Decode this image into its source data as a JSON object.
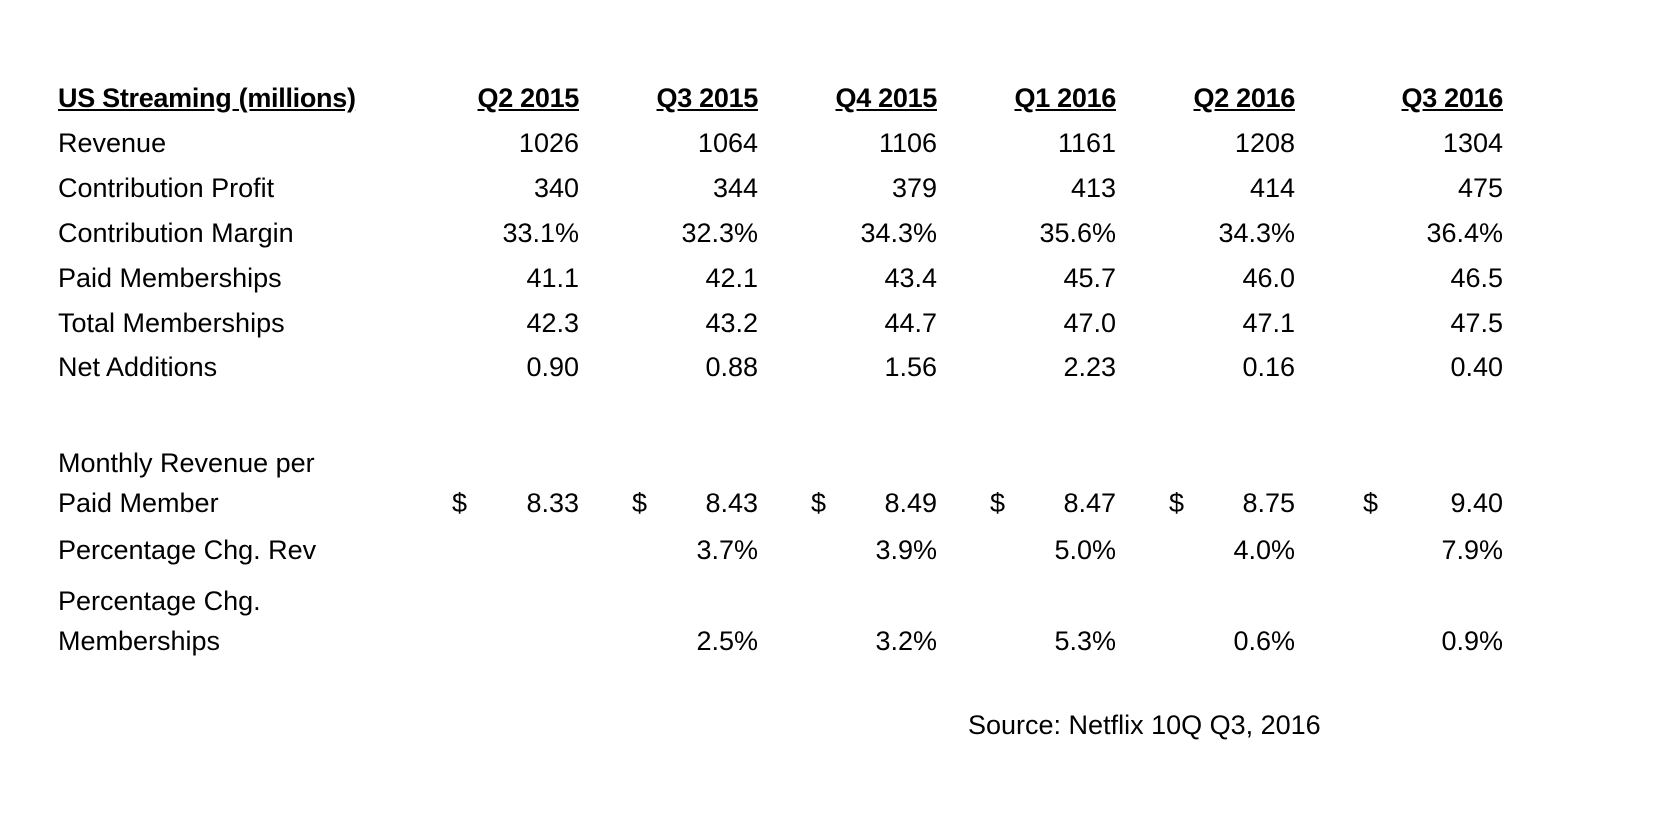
{
  "chart_data": {
    "type": "table",
    "title": "US Streaming (millions)",
    "columns": [
      "Q2 2015",
      "Q3 2015",
      "Q4 2015",
      "Q1 2016",
      "Q2 2016",
      "Q3 2016"
    ],
    "rows": [
      {
        "label": "Revenue",
        "values": [
          "1026",
          "1064",
          "1106",
          "1161",
          "1208",
          "1304"
        ]
      },
      {
        "label": "Contribution Profit",
        "values": [
          "340",
          "344",
          "379",
          "413",
          "414",
          "475"
        ]
      },
      {
        "label": "Contribution Margin",
        "values": [
          "33.1%",
          "32.3%",
          "34.3%",
          "35.6%",
          "34.3%",
          "36.4%"
        ]
      },
      {
        "label": "Paid Memberships",
        "values": [
          "41.1",
          "42.1",
          "43.4",
          "45.7",
          "46.0",
          "46.5"
        ]
      },
      {
        "label": "Total Memberships",
        "values": [
          "42.3",
          "43.2",
          "44.7",
          "47.0",
          "47.1",
          "47.5"
        ]
      },
      {
        "label": "Net Additions",
        "values": [
          "0.90",
          "0.88",
          "1.56",
          "2.23",
          "0.16",
          "0.40"
        ]
      }
    ],
    "monthly_revenue": {
      "label_line1": "Monthly Revenue per",
      "label_line2": "Paid Member",
      "currency": "$",
      "values": [
        "8.33",
        "8.43",
        "8.49",
        "8.47",
        "8.75",
        "9.40"
      ]
    },
    "pct_chg_rev": {
      "label": "Percentage Chg. Rev",
      "values": [
        "",
        "3.7%",
        "3.9%",
        "5.0%",
        "4.0%",
        "7.9%"
      ]
    },
    "pct_chg_members": {
      "label_line1": "Percentage Chg.",
      "label_line2": "Memberships",
      "values": [
        "",
        "2.5%",
        "3.2%",
        "5.3%",
        "0.6%",
        "0.9%"
      ]
    },
    "source": "Source: Netflix 10Q Q3, 2016"
  }
}
